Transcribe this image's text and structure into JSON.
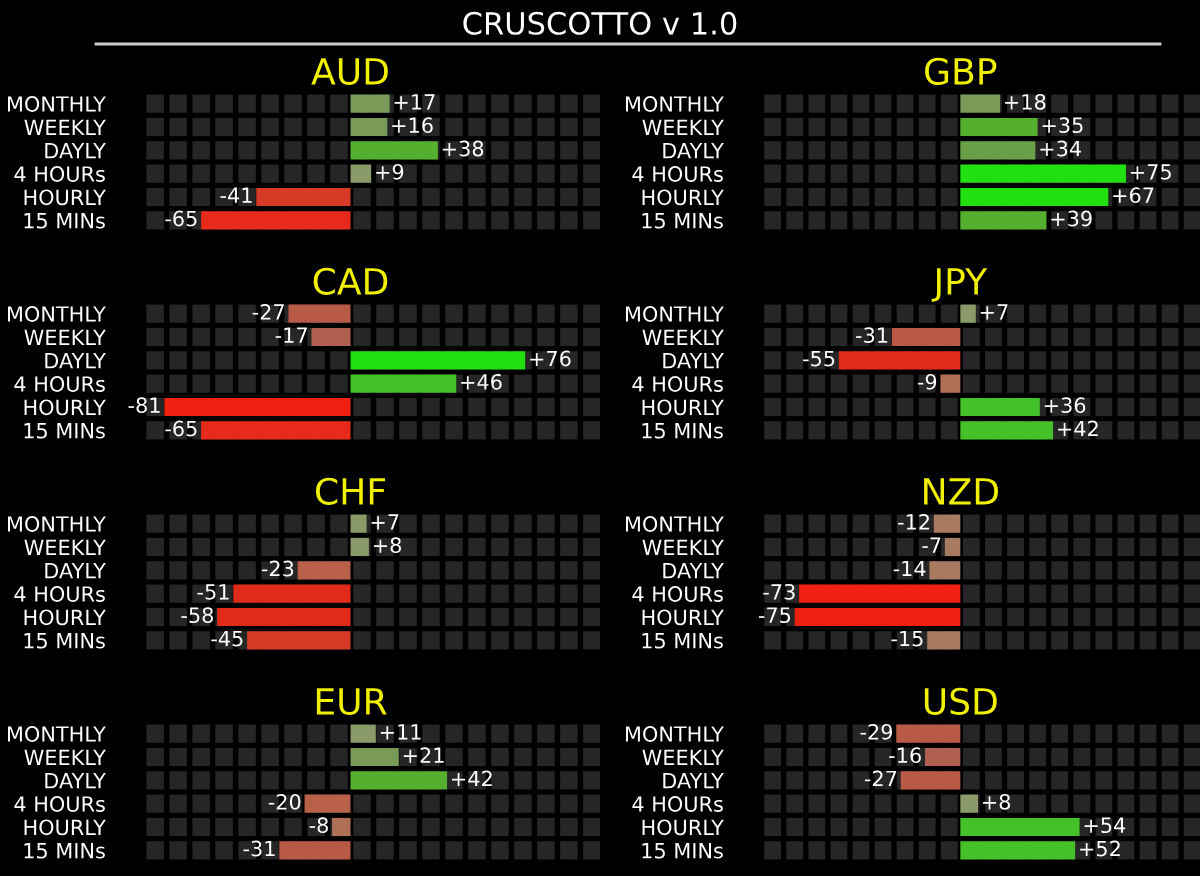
{
  "chart_data": [
    {
      "type": "bar",
      "orientation": "horizontal",
      "title": "AUD",
      "annotations": [
        "CRUSCOTTO v 1.0"
      ],
      "categories": [
        "MONTHLY",
        "WEEKLY",
        "DAYLY",
        "4 HOURs",
        "HOURLY",
        "15 MINs"
      ],
      "values": [
        17,
        16,
        38,
        9,
        -41,
        -65
      ],
      "value_labels": [
        "+17",
        "+16",
        "+38",
        "+9",
        "-41",
        "-65"
      ],
      "colors": [
        "#7a9a58",
        "#7a9a58",
        "#55b030",
        "#8a9a68",
        "#d83a28",
        "#e82a1a"
      ],
      "tick_labels": "y",
      "grid": false,
      "legend": false
    },
    {
      "type": "bar",
      "orientation": "horizontal",
      "title": "GBP",
      "categories": [
        "MONTHLY",
        "WEEKLY",
        "DAYLY",
        "4 HOURs",
        "HOURLY",
        "15 MINs"
      ],
      "values": [
        18,
        35,
        34,
        75,
        67,
        39
      ],
      "value_labels": [
        "+18",
        "+35",
        "+34",
        "+75",
        "+67",
        "+39"
      ],
      "colors": [
        "#7a9a58",
        "#55b030",
        "#6aa048",
        "#22e010",
        "#22e010",
        "#55b030"
      ],
      "tick_labels": "y",
      "grid": false,
      "legend": false
    },
    {
      "type": "bar",
      "orientation": "horizontal",
      "title": "CAD",
      "categories": [
        "MONTHLY",
        "WEEKLY",
        "DAYLY",
        "4 HOURs",
        "HOURLY",
        "15 MINs"
      ],
      "values": [
        -27,
        -17,
        76,
        46,
        -81,
        -65
      ],
      "value_labels": [
        "-27",
        "-17",
        "+76",
        "+46",
        "-81",
        "-65"
      ],
      "colors": [
        "#b85a45",
        "#b06050",
        "#22e010",
        "#44c028",
        "#f02010",
        "#e82a1a"
      ],
      "tick_labels": "y",
      "grid": false,
      "legend": false
    },
    {
      "type": "bar",
      "orientation": "horizontal",
      "title": "JPY",
      "categories": [
        "MONTHLY",
        "WEEKLY",
        "DAYLY",
        "4 HOURs",
        "HOURLY",
        "15 MINs"
      ],
      "values": [
        7,
        -31,
        -55,
        -9,
        36,
        42
      ],
      "value_labels": [
        "+7",
        "-31",
        "-55",
        "-9",
        "+36",
        "+42"
      ],
      "colors": [
        "#8a9a68",
        "#b85a45",
        "#e02a1a",
        "#b07055",
        "#44c028",
        "#44c028"
      ],
      "tick_labels": "y",
      "grid": false,
      "legend": false
    },
    {
      "type": "bar",
      "orientation": "horizontal",
      "title": "CHF",
      "categories": [
        "MONTHLY",
        "WEEKLY",
        "DAYLY",
        "4 HOURs",
        "HOURLY",
        "15 MINs"
      ],
      "values": [
        7,
        8,
        -23,
        -51,
        -58,
        -45
      ],
      "value_labels": [
        "+7",
        "+8",
        "-23",
        "-51",
        "-58",
        "-45"
      ],
      "colors": [
        "#8a9a68",
        "#8a9a68",
        "#b86048",
        "#e02a1a",
        "#e02a1a",
        "#d83a28"
      ],
      "tick_labels": "y",
      "grid": false,
      "legend": false
    },
    {
      "type": "bar",
      "orientation": "horizontal",
      "title": "NZD",
      "categories": [
        "MONTHLY",
        "WEEKLY",
        "DAYLY",
        "4 HOURs",
        "HOURLY",
        "15 MINs"
      ],
      "values": [
        -12,
        -7,
        -14,
        -73,
        -75,
        -15
      ],
      "value_labels": [
        "-12",
        "-7",
        "-14",
        "-73",
        "-75",
        "-15"
      ],
      "colors": [
        "#a87a60",
        "#a87a60",
        "#a87a60",
        "#f02010",
        "#f02010",
        "#a87a60"
      ],
      "tick_labels": "y",
      "grid": false,
      "legend": false
    },
    {
      "type": "bar",
      "orientation": "horizontal",
      "title": "EUR",
      "categories": [
        "MONTHLY",
        "WEEKLY",
        "DAYLY",
        "4 HOURs",
        "HOURLY",
        "15 MINs"
      ],
      "values": [
        11,
        21,
        42,
        -20,
        -8,
        -31
      ],
      "value_labels": [
        "+11",
        "+21",
        "+42",
        "-20",
        "-8",
        "-31"
      ],
      "colors": [
        "#8a9a68",
        "#7a9a58",
        "#55b030",
        "#b86048",
        "#b07055",
        "#b85a45"
      ],
      "tick_labels": "y",
      "grid": false,
      "legend": false
    },
    {
      "type": "bar",
      "orientation": "horizontal",
      "title": "USD",
      "categories": [
        "MONTHLY",
        "WEEKLY",
        "DAYLY",
        "4 HOURs",
        "HOURLY",
        "15 MINs"
      ],
      "values": [
        -29,
        -16,
        -27,
        8,
        54,
        52
      ],
      "value_labels": [
        "-29",
        "-16",
        "-27",
        "+8",
        "+54",
        "+52"
      ],
      "colors": [
        "#b85a45",
        "#b06050",
        "#b85a45",
        "#8a9a68",
        "#44c028",
        "#44c028"
      ],
      "tick_labels": "y",
      "grid": false,
      "legend": false
    }
  ]
}
